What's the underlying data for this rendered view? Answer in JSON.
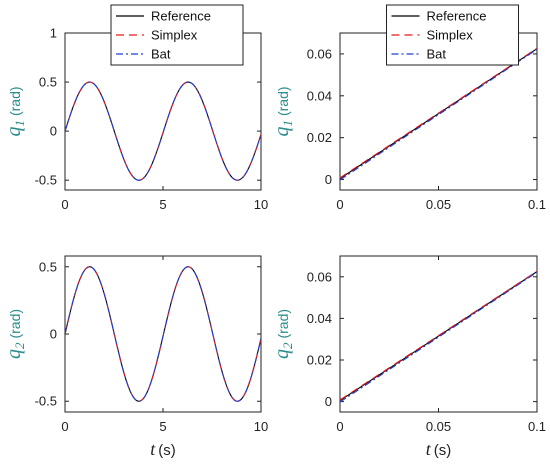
{
  "chart_data": [
    {
      "type": "line",
      "panel": "top-left",
      "ylabel": "q_1 (rad)",
      "ylabel_symbol": "q",
      "ylabel_subscript": "1",
      "ylabel_unit": "(rad)",
      "xlabel": "",
      "xlim": [
        0,
        10
      ],
      "ylim": [
        -0.6,
        1
      ],
      "xticks": [
        "0",
        "5",
        "10"
      ],
      "xtick_values": [
        0,
        5,
        10
      ],
      "yticks": [
        "-0.5",
        "0",
        "0.5",
        "1"
      ],
      "ytick_values": [
        -0.5,
        0,
        0.5,
        1
      ],
      "legend": true,
      "legend_placement": "top",
      "series": [
        {
          "name": "Reference",
          "color": "#000000",
          "dash": "solid",
          "function": "0.5*sin(1.25*t)"
        },
        {
          "name": "Simplex",
          "color": "#e41a1c",
          "dash": "dashed",
          "function": "0.5*sin(1.25*t)"
        },
        {
          "name": "Bat",
          "color": "#1f3fd6",
          "dash": "dashdot",
          "function": "0.5*sin(1.25*t)"
        }
      ],
      "x": [
        0,
        0.5,
        1,
        1.25,
        1.5,
        2,
        2.5,
        3,
        3.5,
        3.75,
        4,
        4.5,
        5,
        5.5,
        6,
        6.25,
        6.5,
        7,
        7.5,
        8,
        8.5,
        8.75,
        9,
        9.5,
        10
      ],
      "y": [
        0,
        0.3,
        0.47,
        0.5,
        0.48,
        0.3,
        0.0,
        -0.3,
        -0.47,
        -0.5,
        -0.48,
        -0.3,
        0.0,
        0.3,
        0.47,
        0.5,
        0.48,
        0.3,
        0.0,
        -0.3,
        -0.47,
        -0.5,
        -0.48,
        -0.3,
        -0.02
      ]
    },
    {
      "type": "line",
      "panel": "top-right",
      "ylabel": "q_1 (rad)",
      "ylabel_symbol": "q",
      "ylabel_subscript": "1",
      "ylabel_unit": "(rad)",
      "xlabel": "",
      "xlim": [
        0,
        0.1
      ],
      "ylim": [
        -0.005,
        0.07
      ],
      "xticks": [
        "0",
        "0.05",
        "0.1"
      ],
      "xtick_values": [
        0,
        0.05,
        0.1
      ],
      "yticks": [
        "0",
        "0.02",
        "0.04",
        "0.06"
      ],
      "ytick_values": [
        0,
        0.02,
        0.04,
        0.06
      ],
      "legend": true,
      "legend_placement": "top",
      "series": [
        {
          "name": "Reference",
          "color": "#000000",
          "dash": "solid",
          "x": [
            0.0,
            0.1
          ],
          "y": [
            0.0005,
            0.0625
          ]
        },
        {
          "name": "Simplex",
          "color": "#e41a1c",
          "dash": "dashed",
          "x": [
            0.0,
            0.1
          ],
          "y": [
            0.0008,
            0.0627
          ]
        },
        {
          "name": "Bat",
          "color": "#1f3fd6",
          "dash": "dashdot",
          "x": [
            0.0,
            0.1
          ],
          "y": [
            -0.0002,
            0.0622
          ]
        }
      ]
    },
    {
      "type": "line",
      "panel": "bottom-left",
      "ylabel": "q_2 (rad)",
      "ylabel_symbol": "q",
      "ylabel_subscript": "2",
      "ylabel_unit": "(rad)",
      "xlabel": "t (s)",
      "xlabel_symbol": "t",
      "xlabel_unit": "(s)",
      "xlim": [
        0,
        10
      ],
      "ylim": [
        -0.58,
        0.58
      ],
      "xticks": [
        "0",
        "5",
        "10"
      ],
      "xtick_values": [
        0,
        5,
        10
      ],
      "yticks": [
        "-0.5",
        "0",
        "0.5"
      ],
      "ytick_values": [
        -0.5,
        0,
        0.5
      ],
      "legend": false,
      "series": [
        {
          "name": "Reference",
          "color": "#000000",
          "dash": "solid",
          "function": "0.5*sin(1.25*t)"
        },
        {
          "name": "Simplex",
          "color": "#e41a1c",
          "dash": "dashed",
          "function": "0.5*sin(1.25*t)"
        },
        {
          "name": "Bat",
          "color": "#1f3fd6",
          "dash": "dashdot",
          "function": "0.5*sin(1.25*t)"
        }
      ]
    },
    {
      "type": "line",
      "panel": "bottom-right",
      "ylabel": "q_2 (rad)",
      "ylabel_symbol": "q",
      "ylabel_subscript": "2",
      "ylabel_unit": "(rad)",
      "xlabel": "t (s)",
      "xlabel_symbol": "t",
      "xlabel_unit": "(s)",
      "xlim": [
        0,
        0.1
      ],
      "ylim": [
        -0.005,
        0.07
      ],
      "xticks": [
        "0",
        "0.05",
        "0.1"
      ],
      "xtick_values": [
        0,
        0.05,
        0.1
      ],
      "yticks": [
        "0",
        "0.02",
        "0.04",
        "0.06"
      ],
      "ytick_values": [
        0,
        0.02,
        0.04,
        0.06
      ],
      "legend": false,
      "series": [
        {
          "name": "Reference",
          "color": "#000000",
          "dash": "solid",
          "x": [
            0.0,
            0.1
          ],
          "y": [
            0.0005,
            0.0625
          ]
        },
        {
          "name": "Simplex",
          "color": "#e41a1c",
          "dash": "dashed",
          "x": [
            0.0,
            0.1
          ],
          "y": [
            0.0008,
            0.0627
          ]
        },
        {
          "name": "Bat",
          "color": "#1f3fd6",
          "dash": "dashdot",
          "x": [
            0.0,
            0.1
          ],
          "y": [
            -0.0002,
            0.0622
          ]
        }
      ]
    }
  ]
}
